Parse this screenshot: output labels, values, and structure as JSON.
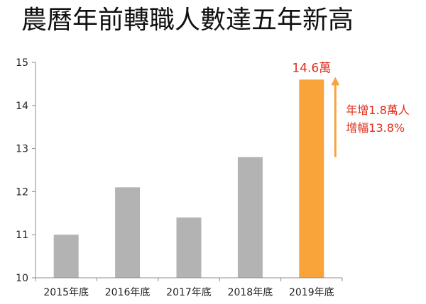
{
  "chart_data": {
    "type": "bar",
    "title": "農曆年前轉職人數達五年新高",
    "categories": [
      "2015年底",
      "2016年底",
      "2017年底",
      "2018年底",
      "2019年底"
    ],
    "values": [
      11.0,
      12.1,
      11.4,
      12.8,
      14.6
    ],
    "ylim": [
      10,
      15
    ],
    "yticks": [
      10,
      11,
      12,
      13,
      14,
      15
    ],
    "xlabel": "",
    "ylabel": "",
    "grid": false,
    "legend": "none",
    "data_labels": [
      "",
      "",
      "",
      "",
      "14.6萬"
    ],
    "highlight_index": 4,
    "annotations": [
      "年增1.8萬人",
      "增幅13.8%"
    ],
    "colors": {
      "bar": "#b3b3b3",
      "highlight": "#f9a33b",
      "label": "#e02d1b",
      "axis": "#8c8c8c",
      "text": "#222222"
    }
  }
}
